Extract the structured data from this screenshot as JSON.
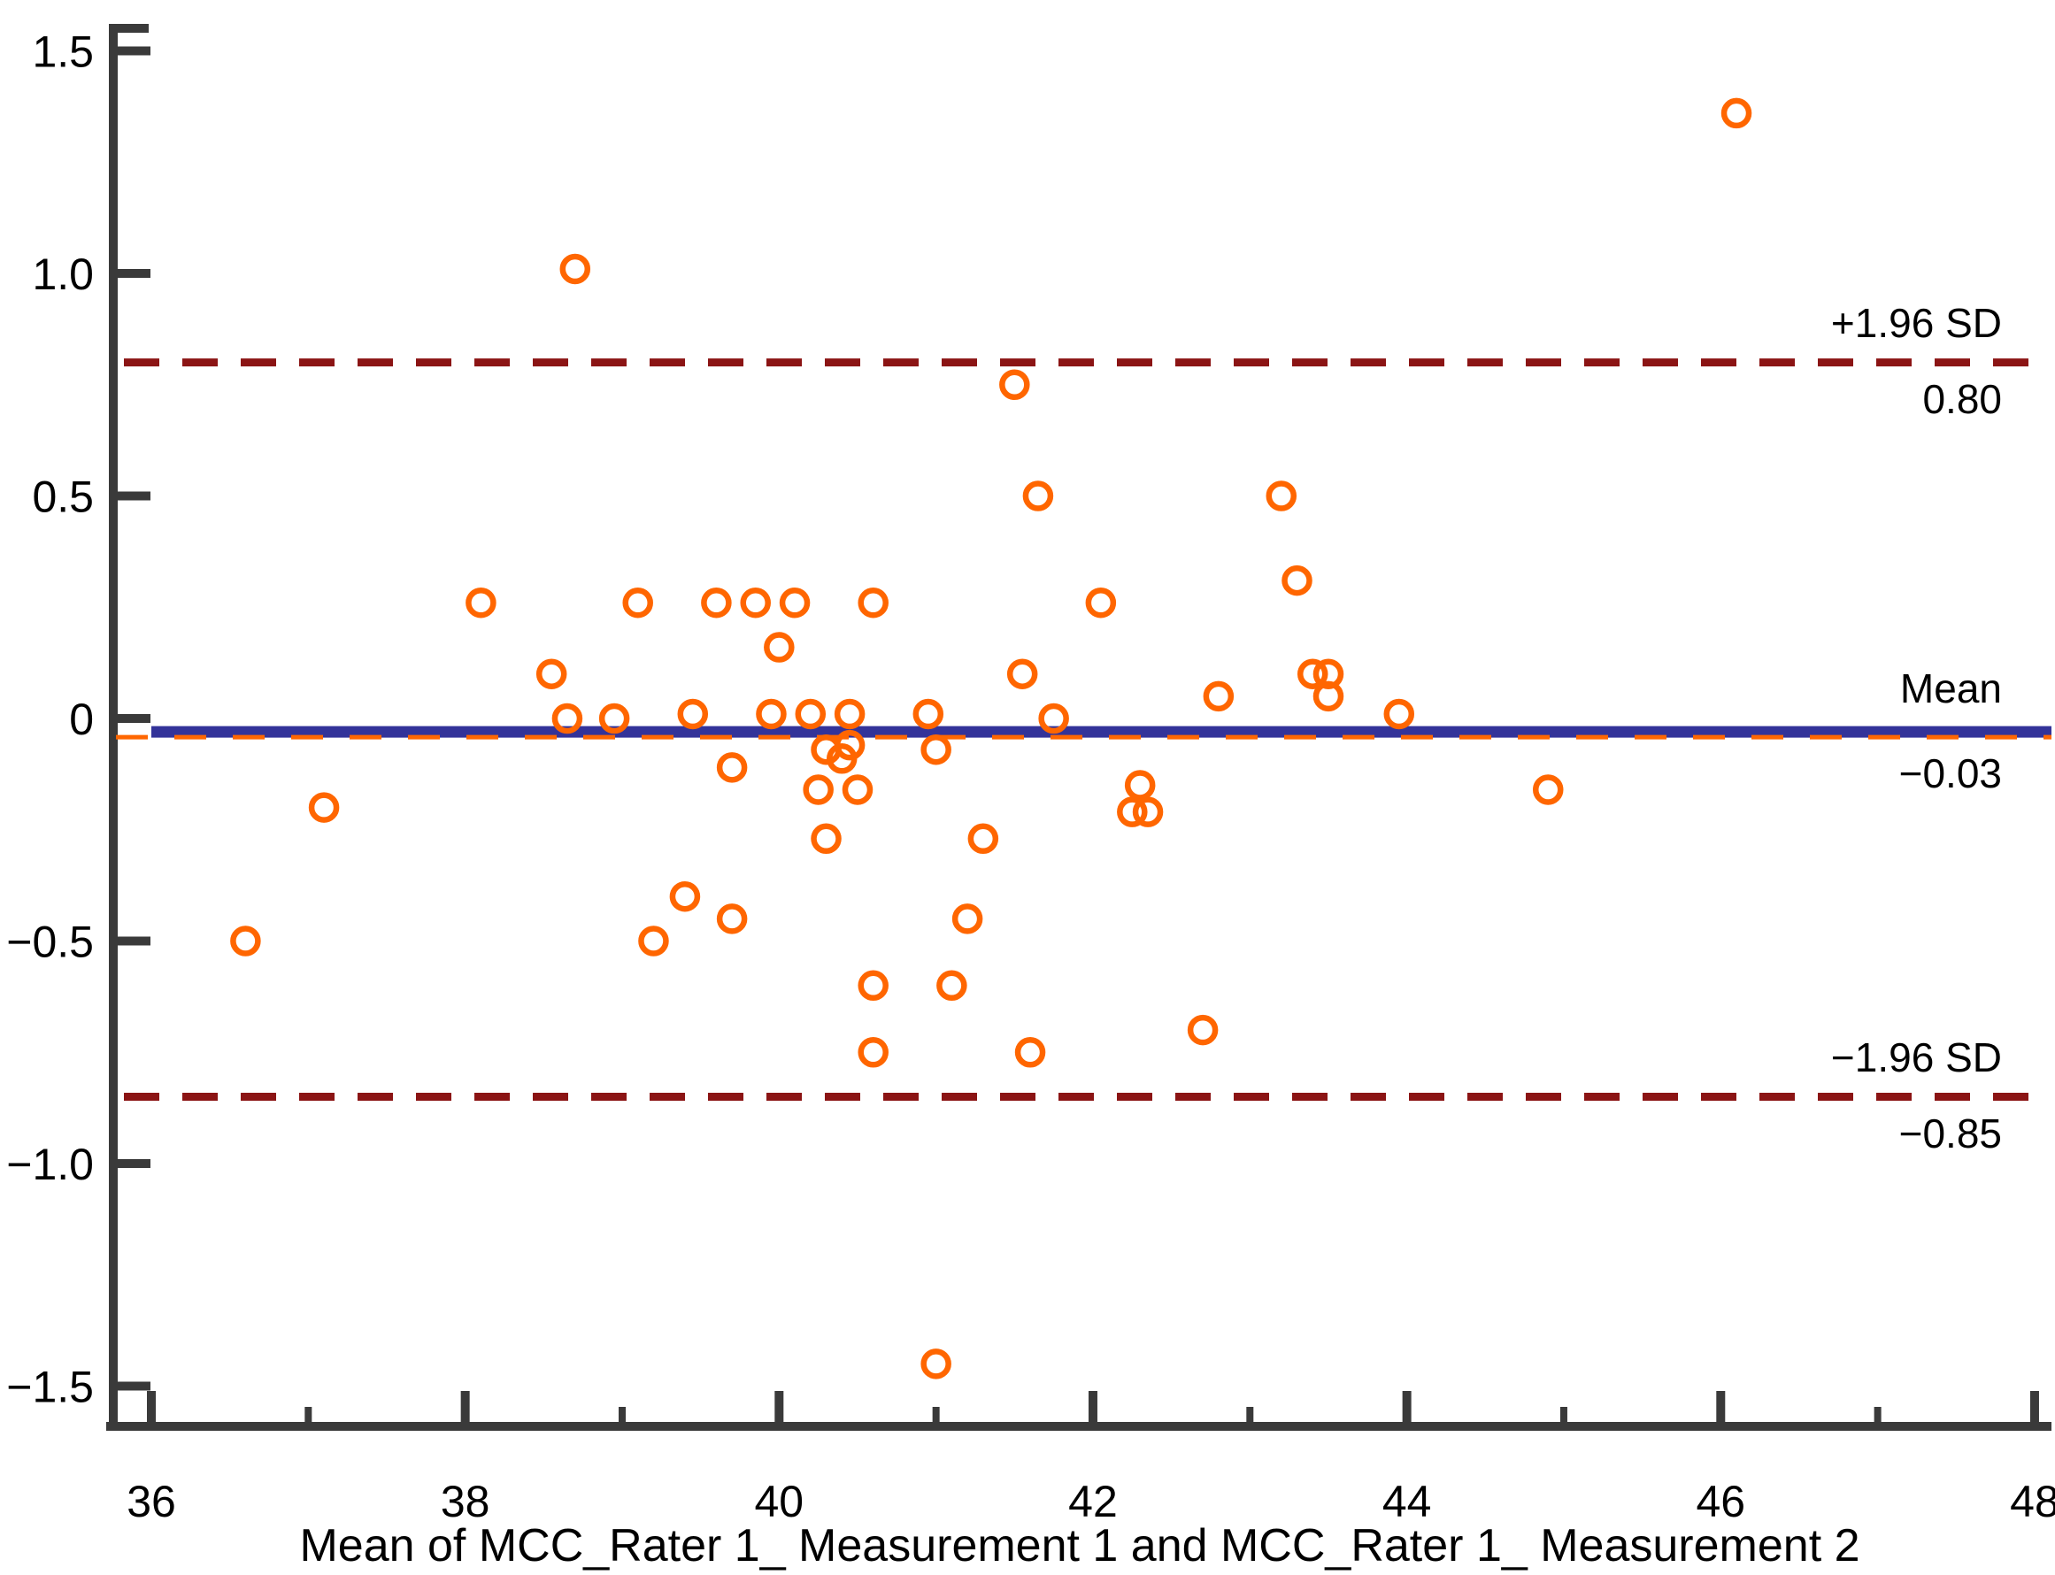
{
  "chart_data": {
    "type": "scatter",
    "title": "",
    "xlabel": "Mean of MCC_Rater 1_ Measurement 1 and MCC_Rater 1_ Measurement 2",
    "ylabel": "",
    "xlim": [
      36,
      48
    ],
    "ylim": [
      -1.5,
      1.5
    ],
    "grid": false,
    "marker": {
      "shape": "open-circle",
      "color": "#FF6600"
    },
    "x_ticks": [
      {
        "v": 36,
        "label": "36"
      },
      {
        "v": 38,
        "label": "38"
      },
      {
        "v": 40,
        "label": "40"
      },
      {
        "v": 42,
        "label": "42"
      },
      {
        "v": 44,
        "label": "44"
      },
      {
        "v": 46,
        "label": "46"
      },
      {
        "v": 48,
        "label": "48"
      }
    ],
    "x_minor_ticks": [
      37,
      39,
      41,
      43,
      45,
      47
    ],
    "y_ticks": [
      {
        "v": 1.5,
        "label": "1.5"
      },
      {
        "v": 1.0,
        "label": "1.0"
      },
      {
        "v": 0.5,
        "label": "0.5"
      },
      {
        "v": 0,
        "label": "0"
      },
      {
        "v": -0.5,
        "label": "−0.5"
      },
      {
        "v": -1.0,
        "label": "−1.0"
      },
      {
        "v": -1.5,
        "label": "−1.5"
      }
    ],
    "reference_lines": {
      "upper_loa": {
        "value": 0.8,
        "label": "+1.96 SD",
        "value_label": "0.80",
        "color": "#8B1414",
        "style": "dashed"
      },
      "mean": {
        "value": -0.03,
        "label": "Mean",
        "value_label": "−0.03",
        "color": "#333399",
        "style": "solid"
      },
      "lower_loa": {
        "value": -0.85,
        "label": "−1.96 SD",
        "value_label": "−0.85",
        "color": "#8B1414",
        "style": "dashed"
      },
      "bias_trend": {
        "value": -0.042,
        "color": "#FF6600",
        "style": "dashed"
      }
    },
    "points": [
      [
        36.6,
        -0.5
      ],
      [
        37.1,
        -0.2
      ],
      [
        38.1,
        0.26
      ],
      [
        38.7,
        1.01
      ],
      [
        46.1,
        1.36
      ],
      [
        41.0,
        -1.45
      ],
      [
        39.1,
        0.26
      ],
      [
        39.6,
        0.26
      ],
      [
        39.85,
        0.26
      ],
      [
        40.1,
        0.26
      ],
      [
        40.6,
        0.26
      ],
      [
        42.05,
        0.26
      ],
      [
        40.0,
        0.16
      ],
      [
        38.55,
        0.1
      ],
      [
        41.55,
        0.1
      ],
      [
        38.65,
        0.0
      ],
      [
        38.95,
        0.0
      ],
      [
        39.45,
        0.01
      ],
      [
        39.95,
        0.01
      ],
      [
        40.2,
        0.01
      ],
      [
        40.45,
        0.01
      ],
      [
        40.95,
        0.01
      ],
      [
        41.75,
        0.0
      ],
      [
        43.95,
        0.01
      ],
      [
        40.3,
        -0.07
      ],
      [
        40.45,
        -0.06
      ],
      [
        40.4,
        -0.09
      ],
      [
        41.0,
        -0.07
      ],
      [
        39.7,
        -0.11
      ],
      [
        40.25,
        -0.16
      ],
      [
        40.5,
        -0.16
      ],
      [
        42.3,
        -0.15
      ],
      [
        42.25,
        -0.21
      ],
      [
        42.35,
        -0.21
      ],
      [
        40.3,
        -0.27
      ],
      [
        41.3,
        -0.27
      ],
      [
        44.9,
        -0.16
      ],
      [
        39.4,
        -0.4
      ],
      [
        39.7,
        -0.45
      ],
      [
        39.2,
        -0.5
      ],
      [
        41.2,
        -0.45
      ],
      [
        40.6,
        -0.6
      ],
      [
        41.1,
        -0.6
      ],
      [
        40.6,
        -0.75
      ],
      [
        41.6,
        -0.75
      ],
      [
        42.7,
        -0.7
      ],
      [
        41.5,
        0.75
      ],
      [
        41.65,
        0.5
      ],
      [
        43.2,
        0.5
      ],
      [
        43.3,
        0.31
      ],
      [
        42.8,
        0.05
      ],
      [
        43.4,
        0.1
      ],
      [
        43.5,
        0.1
      ],
      [
        43.5,
        0.05
      ]
    ],
    "annotations": {
      "upper_label": "+1.96 SD",
      "upper_value": "0.80",
      "mean_label": "Mean",
      "mean_value": "−0.03",
      "lower_label": "−1.96 SD",
      "lower_value": "−0.85"
    },
    "colors": {
      "marker": "#FF6600",
      "mean_line": "#333399",
      "loa_line": "#8B1414",
      "bias_line": "#FF6600",
      "axis": "#3A3A3A",
      "text": "#000000"
    }
  }
}
